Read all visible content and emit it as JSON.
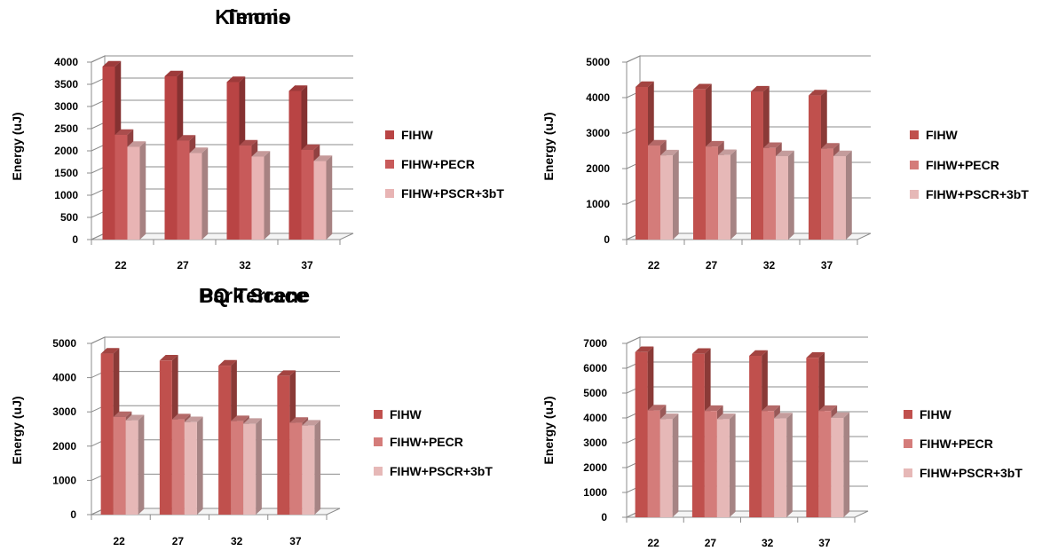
{
  "chart_data": [
    {
      "type": "bar",
      "title": "Tennis",
      "ylabel": "Energy (uJ)",
      "xlabel": "",
      "categories": [
        "22",
        "27",
        "32",
        "37"
      ],
      "ylim": [
        0,
        4000
      ],
      "yticks": [
        "0",
        "500",
        "1000",
        "1500",
        "2000",
        "2500",
        "3000",
        "3500",
        "4000"
      ],
      "grid": true,
      "legend_position": "right",
      "series": [
        {
          "name": "FIHW",
          "values": [
            3900,
            3680,
            3550,
            3350
          ],
          "color": "#b94444"
        },
        {
          "name": "FIHW+PECR",
          "values": [
            2360,
            2230,
            2120,
            2020
          ],
          "color": "#c85a5a"
        },
        {
          "name": "FIHW+PSCR+3bT",
          "values": [
            2090,
            1950,
            1870,
            1770
          ],
          "color": "#e8b4b4"
        }
      ]
    },
    {
      "type": "bar",
      "title": "Kimono",
      "ylabel": "Energy (uJ)",
      "xlabel": "",
      "categories": [
        "22",
        "27",
        "32",
        "37"
      ],
      "ylim": [
        0,
        5000
      ],
      "yticks": [
        "0",
        "1000",
        "2000",
        "3000",
        "4000",
        "5000"
      ],
      "grid": true,
      "legend_position": "right",
      "series": [
        {
          "name": "FIHW",
          "values": [
            4300,
            4230,
            4170,
            4060
          ],
          "color": "#c0504d"
        },
        {
          "name": "FIHW+PECR",
          "values": [
            2650,
            2620,
            2580,
            2560
          ],
          "color": "#d47c7a"
        },
        {
          "name": "FIHW+PSCR+3bT",
          "values": [
            2370,
            2380,
            2350,
            2350
          ],
          "color": "#e6b8b7"
        }
      ]
    },
    {
      "type": "bar",
      "title": "Park Scene",
      "ylabel": "Energy (uJ)",
      "xlabel": "",
      "categories": [
        "22",
        "27",
        "32",
        "37"
      ],
      "ylim": [
        0,
        5000
      ],
      "yticks": [
        "0",
        "1000",
        "2000",
        "3000",
        "4000",
        "5000"
      ],
      "grid": true,
      "legend_position": "right",
      "series": [
        {
          "name": "FIHW",
          "values": [
            4700,
            4500,
            4350,
            4050
          ],
          "color": "#c0504d"
        },
        {
          "name": "FIHW+PECR",
          "values": [
            2850,
            2780,
            2730,
            2680
          ],
          "color": "#d47c7a"
        },
        {
          "name": "FIHW+PSCR+3bT",
          "values": [
            2750,
            2700,
            2650,
            2600
          ],
          "color": "#e6b8b7"
        }
      ]
    },
    {
      "type": "bar",
      "title": "BQ Terrace",
      "ylabel": "Energy (uJ)",
      "xlabel": "",
      "categories": [
        "22",
        "27",
        "32",
        "37"
      ],
      "ylim": [
        0,
        7000
      ],
      "yticks": [
        "0",
        "1000",
        "2000",
        "3000",
        "4000",
        "5000",
        "6000",
        "7000"
      ],
      "grid": true,
      "legend_position": "right",
      "series": [
        {
          "name": "FIHW",
          "values": [
            6650,
            6580,
            6500,
            6420
          ],
          "color": "#c0504d"
        },
        {
          "name": "FIHW+PECR",
          "values": [
            4300,
            4280,
            4280,
            4280
          ],
          "color": "#d47c7a"
        },
        {
          "name": "FIHW+PSCR+3bT",
          "values": [
            3950,
            3950,
            3980,
            4000
          ],
          "color": "#e6b8b7"
        }
      ]
    }
  ]
}
